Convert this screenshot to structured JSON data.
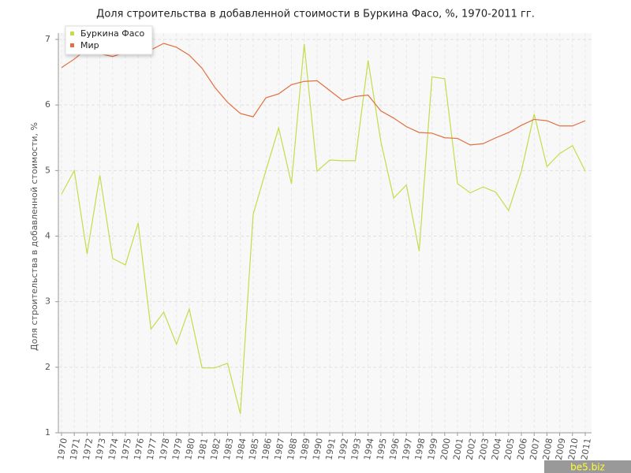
{
  "chart_data": {
    "type": "line",
    "title": "Доля строительства в добавленной стоимости в Буркина Фасо, %, 1970-2011 гг.",
    "y_label": "Доля строительства в добавленной стоимости, %",
    "categories": [
      "1970",
      "1971",
      "1972",
      "1973",
      "1974",
      "1975",
      "1976",
      "1977",
      "1978",
      "1979",
      "1980",
      "1981",
      "1982",
      "1983",
      "1984",
      "1985",
      "1986",
      "1987",
      "1988",
      "1989",
      "1990",
      "1991",
      "1992",
      "1993",
      "1994",
      "1995",
      "1996",
      "1997",
      "1998",
      "1999",
      "2000",
      "2001",
      "2002",
      "2003",
      "2004",
      "2005",
      "2006",
      "2007",
      "2008",
      "2009",
      "2010",
      "2011"
    ],
    "series": [
      {
        "name": "Буркина Фасо",
        "color": "#c5dc4a",
        "values": [
          4.64,
          5.0,
          3.73,
          4.93,
          3.66,
          3.56,
          4.2,
          2.58,
          2.84,
          2.35,
          2.89,
          1.99,
          1.99,
          2.06,
          1.29,
          4.33,
          5.0,
          5.65,
          4.8,
          6.93,
          4.99,
          5.16,
          5.15,
          5.15,
          6.68,
          5.44,
          4.58,
          4.78,
          3.77,
          6.43,
          6.4,
          4.8,
          4.66,
          4.75,
          4.67,
          4.39,
          4.99,
          5.86,
          5.06,
          5.26,
          5.38,
          4.99
        ]
      },
      {
        "name": "Мир",
        "color": "#e07040",
        "values": [
          6.57,
          6.7,
          6.86,
          6.78,
          6.74,
          6.8,
          6.82,
          6.84,
          6.94,
          6.88,
          6.76,
          6.56,
          6.27,
          6.04,
          5.87,
          5.82,
          6.11,
          6.17,
          6.31,
          6.36,
          6.37,
          6.22,
          6.07,
          6.13,
          6.15,
          5.91,
          5.8,
          5.67,
          5.58,
          5.57,
          5.5,
          5.49,
          5.39,
          5.41,
          5.5,
          5.58,
          5.69,
          5.78,
          5.76,
          5.68,
          5.68,
          5.76
        ]
      }
    ],
    "ylim": [
      1,
      7
    ],
    "yticks": [
      1,
      2,
      3,
      4,
      5,
      6,
      7
    ],
    "grid": true,
    "legend": "top-left",
    "watermark": "be5.biz"
  }
}
